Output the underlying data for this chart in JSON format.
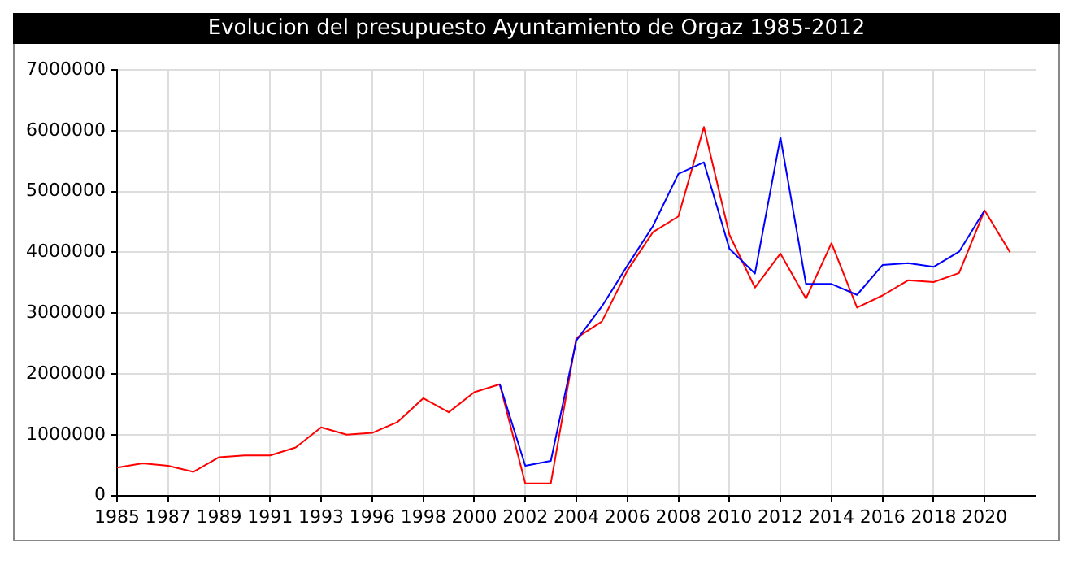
{
  "chart_data": {
    "type": "line",
    "title": "Evolucion del presupuesto Ayuntamiento de Orgaz 1985-2012",
    "categories": [
      "1985",
      null,
      "1987",
      null,
      "1989",
      null,
      "1991",
      null,
      "1993",
      null,
      "1996",
      null,
      "1998",
      null,
      "2000",
      null,
      "2002",
      null,
      "2004",
      null,
      "2006",
      null,
      "2008",
      null,
      "2010",
      null,
      "2012",
      null,
      "2014",
      null,
      "2016",
      null,
      "2018",
      null,
      "2020",
      null,
      null
    ],
    "series": [
      {
        "color": "#0000ff",
        "values": [
          null,
          null,
          null,
          null,
          null,
          null,
          null,
          null,
          null,
          null,
          null,
          null,
          null,
          null,
          null,
          1830000,
          490000,
          570000,
          2550000,
          3110000,
          3780000,
          4430000,
          5290000,
          5480000,
          4060000,
          3650000,
          5890000,
          3480000,
          3480000,
          3300000,
          3790000,
          3820000,
          3760000,
          4010000,
          4690000,
          null,
          null
        ]
      },
      {
        "color": "#ff0000",
        "values": [
          460000,
          530000,
          490000,
          390000,
          630000,
          660000,
          660000,
          790000,
          1120000,
          1000000,
          1030000,
          1210000,
          1600000,
          1370000,
          1700000,
          1830000,
          200000,
          200000,
          2590000,
          2860000,
          3700000,
          4330000,
          4590000,
          6060000,
          4290000,
          3420000,
          3980000,
          3240000,
          4150000,
          3090000,
          3290000,
          3540000,
          3510000,
          3660000,
          4690000,
          4000000,
          null
        ]
      }
    ],
    "ylim": [
      0,
      7000000
    ],
    "yticks": [
      0,
      1000000,
      2000000,
      3000000,
      4000000,
      5000000,
      6000000,
      7000000
    ],
    "grid": true,
    "legend": false,
    "marker": "none",
    "line_style": "solid"
  }
}
